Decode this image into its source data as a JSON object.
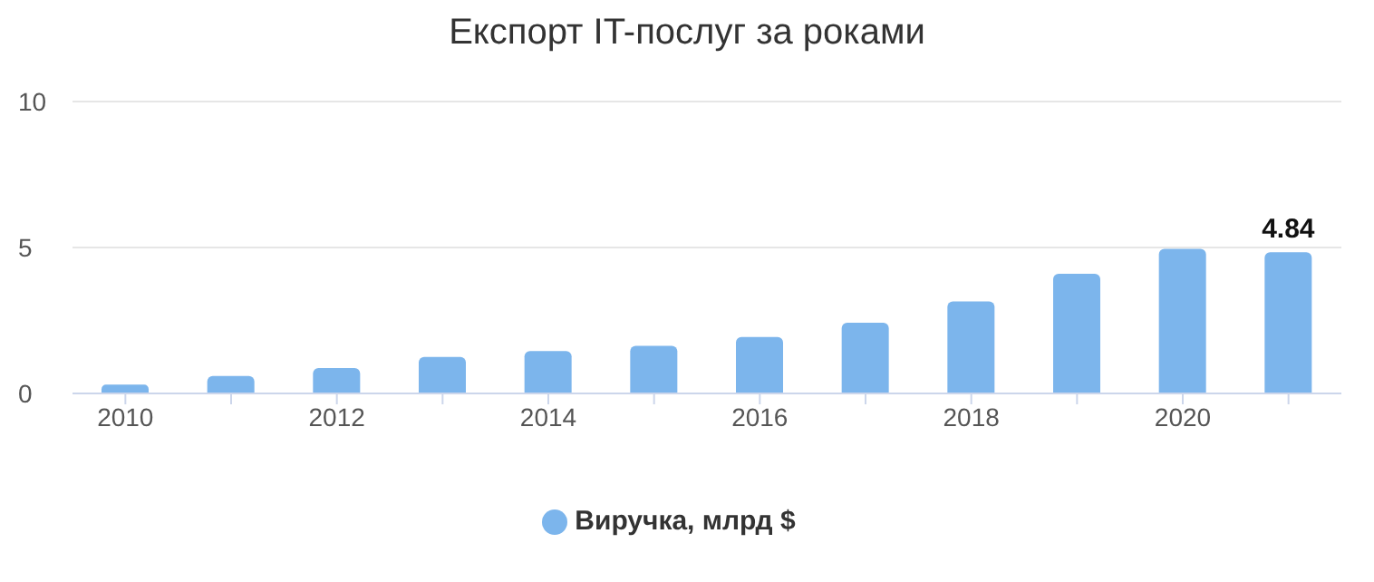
{
  "chart_data": {
    "type": "bar",
    "title": "Експорт IT-послуг за роками",
    "categories": [
      "2010",
      null,
      "2012",
      null,
      "2014",
      null,
      "2016",
      null,
      "2018",
      null,
      "2020",
      null
    ],
    "series": [
      {
        "name": "Виручка, млрд $",
        "color": "#7cb5ec",
        "values": [
          0.3,
          0.6,
          0.87,
          1.25,
          1.45,
          1.63,
          1.93,
          2.42,
          3.15,
          4.1,
          4.95,
          4.84
        ],
        "value_labels": [
          null,
          null,
          null,
          null,
          null,
          null,
          null,
          null,
          null,
          null,
          null,
          "4.84"
        ]
      }
    ],
    "ylim": [
      0,
      10
    ],
    "yticks": [
      0,
      5,
      10
    ],
    "grid": "y",
    "legend": "bottom"
  }
}
